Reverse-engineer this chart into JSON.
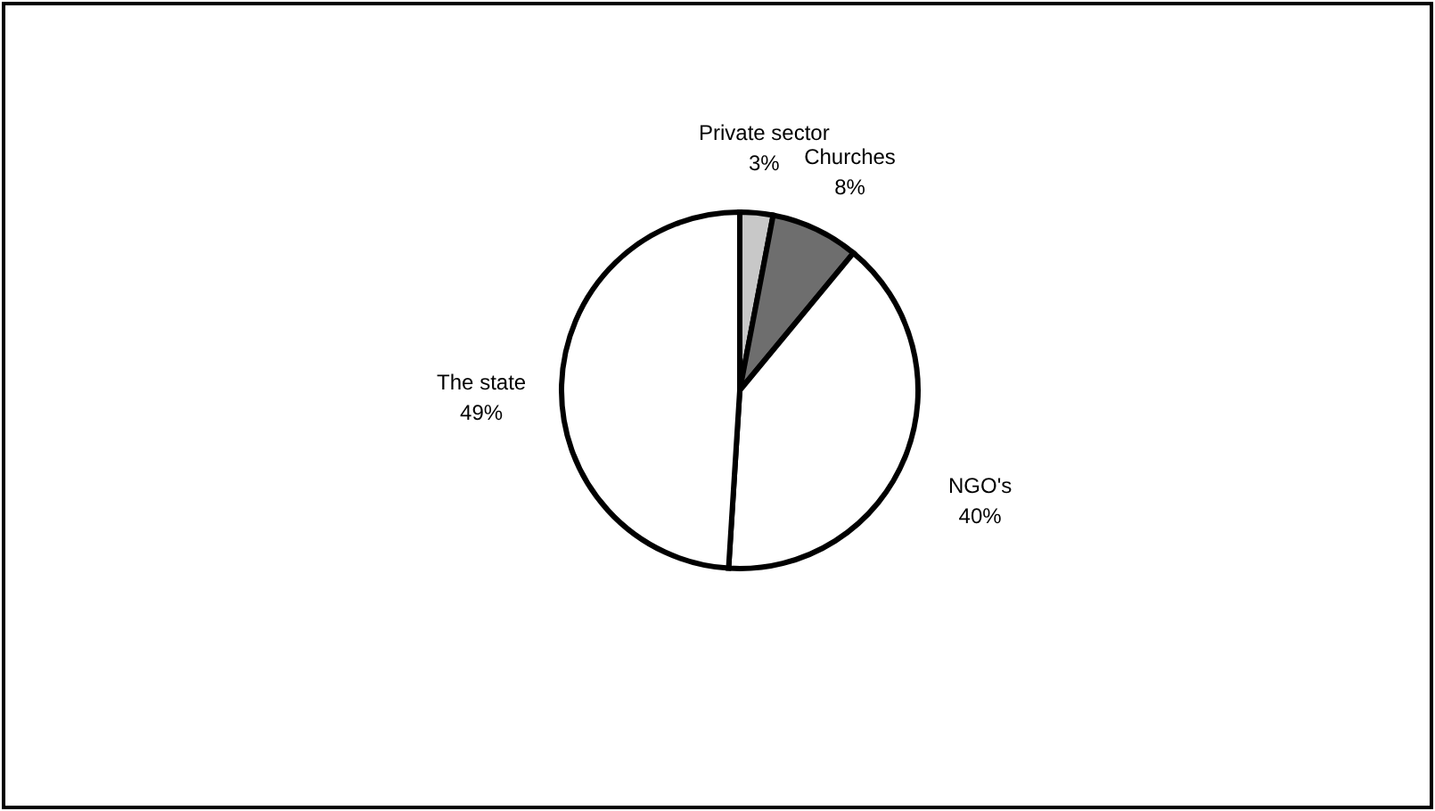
{
  "chart_data": {
    "type": "pie",
    "categories": [
      "Private sector",
      "Churches",
      "NGO's",
      "The state"
    ],
    "values": [
      3,
      8,
      40,
      49
    ],
    "colors": [
      "#c8c8c8",
      "#6e6e6e",
      "#ffffff",
      "#ffffff"
    ],
    "value_labels": [
      "3%",
      "8%",
      "40%",
      "49%"
    ]
  }
}
